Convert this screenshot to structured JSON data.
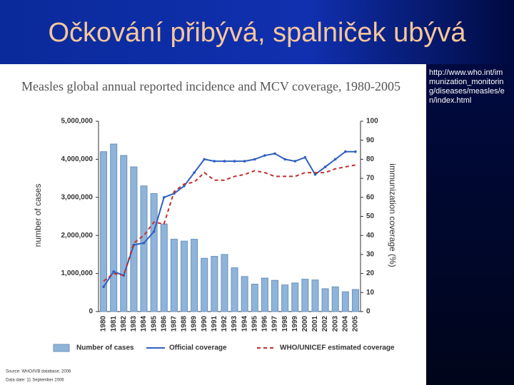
{
  "slide": {
    "title": "Očkování přibývá, spalniček ubývá",
    "link": "http://www.who.int/immunization_monitoring/diseases/measles/en/index.html"
  },
  "chart_data": {
    "type": "bar",
    "title": "Measles global annual reported incidence and MCV coverage, 1980-2005",
    "y_label": "number of cases",
    "y2_label": "immunization coverage (%)",
    "source": "Source: WHO/IVB database, 2006",
    "date": "Data date: 11 September 2006",
    "categories": [
      "1980",
      "1981",
      "1982",
      "1983",
      "1984",
      "1985",
      "1986",
      "1987",
      "1988",
      "1989",
      "1990",
      "1991",
      "1992",
      "1993",
      "1994",
      "1995",
      "1996",
      "1997",
      "1998",
      "1999",
      "2000",
      "2001",
      "2002",
      "2003",
      "2004",
      "2005"
    ],
    "series": [
      {
        "name": "Number of cases",
        "type": "bar",
        "color": "#8fb4d9",
        "values": [
          4200000,
          4400000,
          4100000,
          3800000,
          3300000,
          3100000,
          2300000,
          1900000,
          1850000,
          1900000,
          1400000,
          1450000,
          1500000,
          1150000,
          920000,
          720000,
          880000,
          820000,
          700000,
          750000,
          850000,
          830000,
          600000,
          650000,
          520000,
          580000
        ]
      },
      {
        "name": "Official coverage",
        "type": "line",
        "axis": "y2",
        "color": "#3060c0",
        "dashed": false,
        "values": [
          13,
          21,
          19,
          35,
          36,
          42,
          60,
          62,
          66,
          73,
          80,
          79,
          79,
          79,
          79,
          80,
          82,
          83,
          80,
          79,
          81,
          72,
          76,
          80,
          84,
          84
        ]
      },
      {
        "name": "WHO/UNICEF estimated coverage",
        "type": "line",
        "axis": "y2",
        "color": "#c03030",
        "dashed": true,
        "values": [
          16,
          20,
          19,
          36,
          40,
          47,
          46,
          63,
          67,
          68,
          73,
          69,
          69,
          71,
          72,
          74,
          73,
          71,
          71,
          71,
          73,
          73,
          73,
          75,
          76,
          77
        ]
      }
    ],
    "ylim": [
      0,
      5000000
    ],
    "yticks": [
      0,
      {
        "value": 1000000,
        "label": "1,000,000"
      },
      {
        "value": 2000000,
        "label": "2,000,000"
      },
      {
        "value": 3000000,
        "label": "3,000,000"
      },
      {
        "value": 4000000,
        "label": "4,000,000"
      },
      {
        "value": 5000000,
        "label": "5,000,000"
      }
    ],
    "y2lim": [
      0,
      100
    ],
    "y2ticks": [
      0,
      10,
      20,
      30,
      40,
      50,
      60,
      70,
      80,
      90,
      100
    ]
  }
}
